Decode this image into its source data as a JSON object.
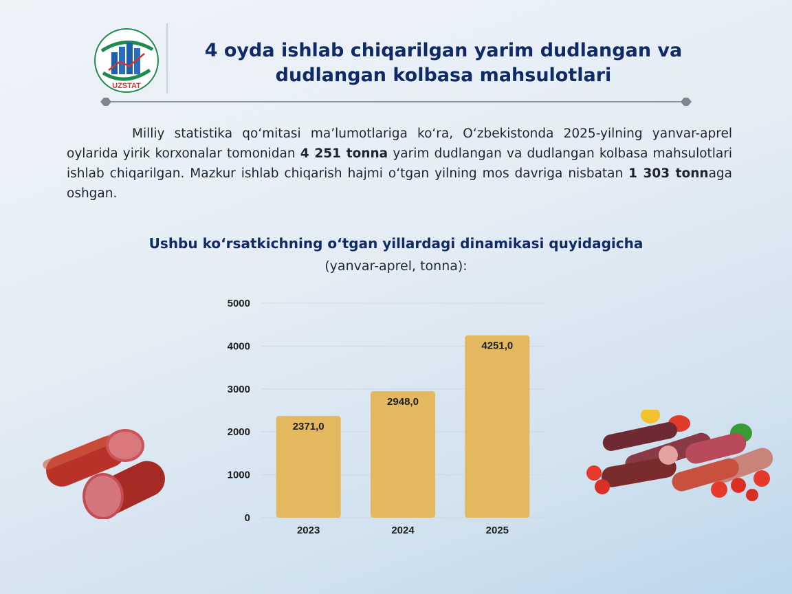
{
  "header": {
    "logo_text": "UZSTAT",
    "title_line1": "4 oyda ishlab chiqarilgan yarim dudlangan va",
    "title_line2": "dudlangan kolbasa mahsulotlari"
  },
  "paragraph": {
    "part1": "Milliy statistika qo‘mitasi ma’lumotlariga ko‘ra, O‘zbekistonda 2025-yilning yanvar-aprel oylarida yirik korxonalar tomonidan ",
    "bold1": "4 251 tonna",
    "part2": " yarim dudlangan va dudlangan kolbasa mahsulotlari ishlab chiqarilgan. Mazkur ishlab chiqarish hajmi o‘tgan yilning mos davriga nisbatan ",
    "bold2": "1 303 tonn",
    "part3": "aga oshgan."
  },
  "chart_heading": {
    "title": "Ushbu ko‘rsatkichning o‘tgan yillardagi dinamikasi quyidagicha",
    "subtitle": "(yanvar-aprel, tonna):"
  },
  "colors": {
    "title": "#0f2a66",
    "bar": "#e3b85e",
    "grid": "#cfd6de"
  },
  "chart_data": {
    "type": "bar",
    "categories": [
      "2023",
      "2024",
      "2025"
    ],
    "values": [
      2371.0,
      2948.0,
      4251.0
    ],
    "value_labels": [
      "2371,0",
      "2948,0",
      "4251,0"
    ],
    "y_ticks": [
      "0",
      "1000",
      "2000",
      "3000",
      "4000",
      "5000"
    ],
    "ylim": [
      0,
      5000
    ],
    "grid": true,
    "legend": "none"
  }
}
